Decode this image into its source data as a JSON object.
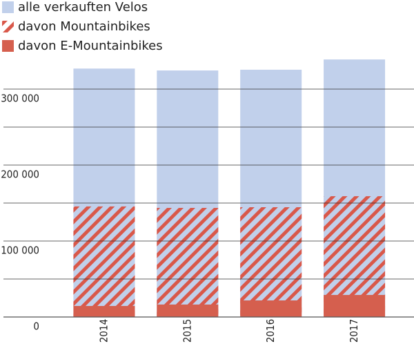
{
  "chart_data": {
    "type": "bar",
    "overlap": true,
    "categories": [
      "2014",
      "2015",
      "2016",
      "2017"
    ],
    "series": [
      {
        "name": "alle verkauften Velos",
        "color": "#c1d0eb",
        "values": [
          327000,
          324500,
          325500,
          339000
        ]
      },
      {
        "name": "davon Mountainbikes",
        "color": "#d9584a",
        "hatch": true,
        "values": [
          145500,
          143600,
          144500,
          159000
        ]
      },
      {
        "name": "davon E-Mountainbikes",
        "color": "#d55f4e",
        "values": [
          14500,
          16400,
          21800,
          29000
        ]
      }
    ],
    "ylim": [
      0,
      350000
    ],
    "yticks": [
      {
        "value": 0,
        "label": "0"
      },
      {
        "value": 50000,
        "label": null
      },
      {
        "value": 100000,
        "label": "100 000"
      },
      {
        "value": 150000,
        "label": null
      },
      {
        "value": 200000,
        "label": "200 000"
      },
      {
        "value": 250000,
        "label": null
      },
      {
        "value": 300000,
        "label": "300 000"
      }
    ],
    "grid": true,
    "legend": "top-left"
  }
}
